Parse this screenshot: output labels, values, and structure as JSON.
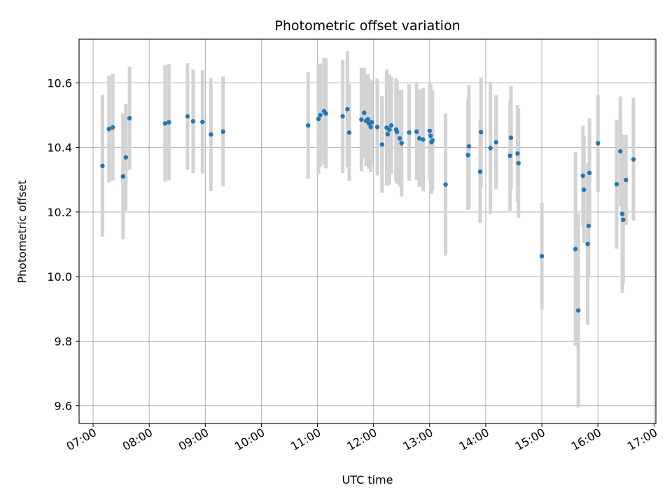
{
  "chart_data": {
    "type": "scatter",
    "title": "Photometric offset variation",
    "xlabel": "UTC time",
    "ylabel": "Photometric offset",
    "xlim": [
      "06:45",
      "17:02"
    ],
    "ylim": [
      9.545,
      10.735
    ],
    "grid": true,
    "legend": "none",
    "x_ticks": [
      "07:00",
      "08:00",
      "09:00",
      "10:00",
      "11:00",
      "12:00",
      "13:00",
      "14:00",
      "15:00",
      "16:00",
      "17:00"
    ],
    "y_ticks": [
      9.6,
      9.8,
      10.0,
      10.2,
      10.4,
      10.6
    ],
    "y_tick_labels": [
      "9.6",
      "9.8",
      "10.0",
      "10.2",
      "10.4",
      "10.6"
    ],
    "colors": {
      "points": "#1f77b4",
      "errorbars": "#d3d3d3",
      "grid": "#b0b0b0"
    },
    "series": [
      {
        "x": [
          "07:10",
          "07:17",
          "07:21",
          "07:32",
          "07:35",
          "07:39",
          "08:17",
          "08:21",
          "08:41",
          "08:47",
          "08:57",
          "09:06",
          "09:19",
          "10:50",
          "11:01",
          "11:03",
          "11:07",
          "11:09",
          "11:27",
          "11:32",
          "11:34",
          "11:47",
          "11:50",
          "11:52",
          "11:54",
          "11:55",
          "11:57",
          "11:58",
          "12:04",
          "12:09",
          "12:14",
          "12:15",
          "12:17",
          "12:19",
          "12:24",
          "12:25",
          "12:28",
          "12:30",
          "12:38",
          "12:46",
          "12:49",
          "12:53",
          "13:00",
          "13:01",
          "13:02",
          "13:03",
          "13:17",
          "13:41",
          "13:42",
          "13:54",
          "13:55",
          "14:05",
          "14:11",
          "14:26",
          "14:27",
          "14:34",
          "14:35",
          "15:00",
          "15:36",
          "15:39",
          "15:44",
          "15:45",
          "15:49",
          "15:50",
          "15:51",
          "16:00",
          "16:20",
          "16:24",
          "16:26",
          "16:27",
          "16:30",
          "16:38"
        ],
        "y": [
          10.343,
          10.457,
          10.462,
          10.31,
          10.369,
          10.49,
          10.474,
          10.478,
          10.496,
          10.481,
          10.479,
          10.44,
          10.449,
          10.468,
          10.488,
          10.5,
          10.512,
          10.505,
          10.496,
          10.518,
          10.446,
          10.486,
          10.507,
          10.482,
          10.487,
          10.474,
          10.463,
          10.478,
          10.463,
          10.409,
          10.461,
          10.441,
          10.455,
          10.468,
          10.455,
          10.448,
          10.428,
          10.413,
          10.446,
          10.449,
          10.428,
          10.424,
          10.451,
          10.436,
          10.416,
          10.422,
          10.285,
          10.376,
          10.403,
          10.325,
          10.447,
          10.398,
          10.416,
          10.374,
          10.43,
          10.381,
          10.351,
          10.063,
          10.085,
          9.895,
          10.312,
          10.269,
          10.101,
          10.157,
          10.321,
          10.413,
          10.286,
          10.388,
          10.194,
          10.176,
          10.299,
          10.363
        ],
        "err": [
          0.22,
          0.165,
          0.165,
          0.195,
          0.165,
          0.16,
          0.18,
          0.18,
          0.165,
          0.16,
          0.16,
          0.175,
          0.17,
          0.165,
          0.17,
          0.16,
          0.165,
          0.17,
          0.175,
          0.18,
          0.15,
          0.16,
          0.14,
          0.14,
          0.14,
          0.14,
          0.14,
          0.13,
          0.15,
          0.15,
          0.18,
          0.16,
          0.17,
          0.15,
          0.16,
          0.16,
          0.15,
          0.165,
          0.15,
          0.15,
          0.15,
          0.16,
          0.15,
          0.16,
          0.16,
          0.155,
          0.22,
          0.17,
          0.19,
          0.16,
          0.17,
          0.205,
          0.145,
          0.17,
          0.16,
          0.15,
          0.17,
          0.165,
          0.3,
          0.3,
          0.155,
          0.165,
          0.25,
          0.16,
          0.17,
          0.15,
          0.2,
          0.17,
          0.245,
          0.2,
          0.14,
          0.19
        ]
      }
    ]
  }
}
